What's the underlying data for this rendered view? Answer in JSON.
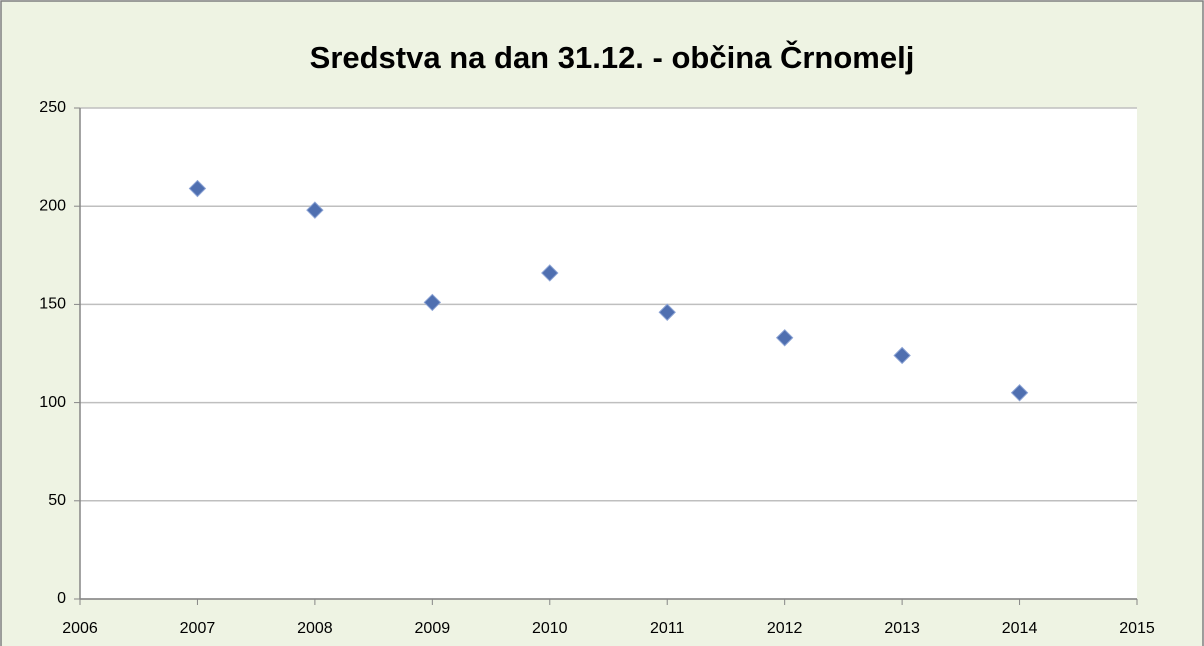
{
  "chart_data": {
    "type": "scatter",
    "title": "Sredstva na dan 31.12.  - občina Črnomelj",
    "x": [
      2007,
      2008,
      2009,
      2010,
      2011,
      2012,
      2013,
      2014
    ],
    "series": [
      {
        "color": "#4f6fb0",
        "values": [
          209,
          198,
          151,
          166,
          146,
          133,
          124,
          105
        ]
      }
    ],
    "xlim": [
      2006,
      2015
    ],
    "xticks": [
      2006,
      2007,
      2008,
      2009,
      2010,
      2011,
      2012,
      2013,
      2014,
      2015
    ],
    "ylim": [
      0,
      250
    ],
    "yticks": [
      0,
      50,
      100,
      150,
      200,
      250
    ],
    "grid": true
  }
}
